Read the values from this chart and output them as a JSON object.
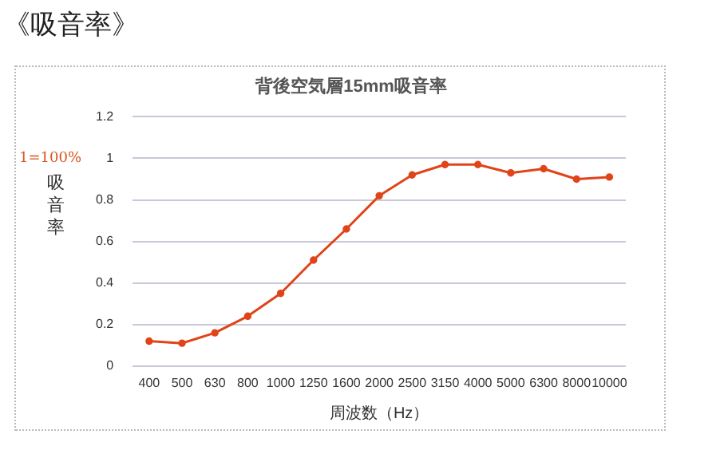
{
  "chart_data": {
    "type": "line",
    "title": "《吸音率》",
    "subtitle": "背後空気層15mm吸音率",
    "xlabel": "周波数（Hz）",
    "ylabel": "吸音率",
    "categories": [
      "400",
      "500",
      "630",
      "800",
      "1000",
      "1250",
      "1600",
      "2000",
      "2500",
      "3150",
      "4000",
      "5000",
      "6300",
      "8000",
      "10000"
    ],
    "series": [
      {
        "color": "#e04418",
        "values": [
          0.12,
          0.11,
          0.16,
          0.24,
          0.35,
          0.51,
          0.66,
          0.82,
          0.92,
          0.97,
          0.97,
          0.93,
          0.95,
          0.9,
          0.91
        ]
      }
    ],
    "ylim": [
      0,
      1.2
    ],
    "yticks": [
      0,
      0.2,
      0.4,
      0.6,
      0.8,
      1,
      1.2
    ],
    "grid": "y",
    "legend": false,
    "marker": "circle",
    "line_style": "solid",
    "annotations": [
      "1=100%"
    ]
  }
}
